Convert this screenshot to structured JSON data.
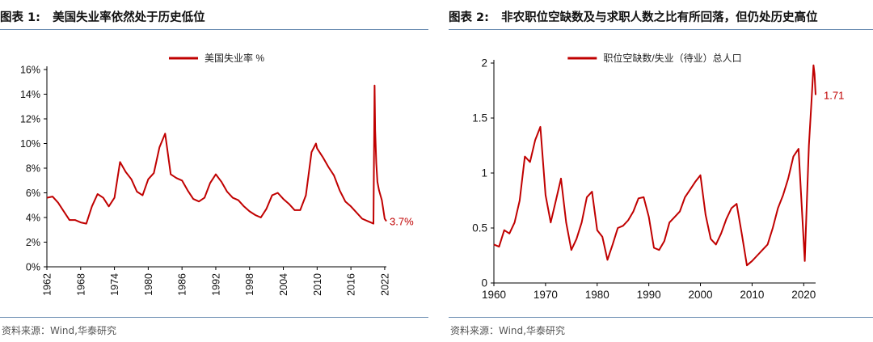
{
  "figures": [
    {
      "label": "图表 1:",
      "title": "美国失业率依然处于历史低位",
      "source": "资料来源：Wind,华泰研究"
    },
    {
      "label": "图表 2:",
      "title": "非农职位空缺数及与求职人数之比有所回落，但仍处历史高位",
      "source": "资料来源：Wind,华泰研究"
    }
  ],
  "colors": {
    "line": "#c00000",
    "axis": "#000000",
    "rule": "#6d8fb3"
  },
  "chart_data": [
    {
      "type": "line",
      "title": "美国失业率依然处于历史低位",
      "legend": "美国失业率 %",
      "legend_position": "top-center",
      "xlim": [
        1962,
        2022.3
      ],
      "ylim": [
        0,
        16
      ],
      "y_ticks": [
        0,
        2,
        4,
        6,
        8,
        10,
        12,
        14,
        16
      ],
      "y_tick_labels": [
        "0%",
        "2%",
        "4%",
        "6%",
        "8%",
        "10%",
        "12%",
        "14%",
        "16%"
      ],
      "x_ticks": [
        1962,
        1968,
        1974,
        1980,
        1986,
        1992,
        1998,
        2004,
        2010,
        2016,
        2022
      ],
      "x_tick_labels": [
        "1962",
        "1968",
        "1974",
        "1980",
        "1986",
        "1992",
        "1998",
        "2004",
        "2010",
        "2016",
        "2022"
      ],
      "annotation": {
        "text": "3.7%",
        "x": 2022.3,
        "y": 3.7
      },
      "series": [
        {
          "name": "美国失业率",
          "x": [
            1962,
            1963,
            1964,
            1965,
            1966,
            1967,
            1968,
            1969,
            1970,
            1971,
            1972,
            1973,
            1974,
            1975,
            1976,
            1977,
            1978,
            1979,
            1980,
            1981,
            1982,
            1983,
            1984,
            1985,
            1986,
            1987,
            1988,
            1989,
            1990,
            1991,
            1992,
            1993,
            1994,
            1995,
            1996,
            1997,
            1998,
            1999,
            2000,
            2001,
            2002,
            2003,
            2004,
            2005,
            2006,
            2007,
            2008,
            2009,
            2009.8,
            2010,
            2011,
            2012,
            2013,
            2014,
            2015,
            2016,
            2017,
            2018,
            2019,
            2020.0,
            2020.2,
            2020.3,
            2020.5,
            2020.7,
            2021,
            2021.5,
            2022,
            2022.3
          ],
          "y": [
            5.6,
            5.7,
            5.2,
            4.5,
            3.8,
            3.8,
            3.6,
            3.5,
            4.9,
            5.9,
            5.6,
            4.9,
            5.6,
            8.5,
            7.7,
            7.1,
            6.1,
            5.8,
            7.1,
            7.6,
            9.7,
            10.8,
            7.5,
            7.2,
            7.0,
            6.2,
            5.5,
            5.3,
            5.6,
            6.8,
            7.5,
            6.9,
            6.1,
            5.6,
            5.4,
            4.9,
            4.5,
            4.2,
            4.0,
            4.7,
            5.8,
            6.0,
            5.5,
            5.1,
            4.6,
            4.6,
            5.8,
            9.3,
            10.0,
            9.6,
            8.9,
            8.1,
            7.4,
            6.2,
            5.3,
            4.9,
            4.4,
            3.9,
            3.7,
            3.5,
            14.7,
            11.1,
            8.4,
            6.9,
            6.2,
            5.4,
            3.9,
            3.7
          ]
        }
      ]
    },
    {
      "type": "line",
      "title": "非农职位空缺数及与求职人数之比有所回落，但仍处历史高位",
      "legend": "职位空缺数/失业（待业）总人口",
      "legend_position": "top-center",
      "xlim": [
        1960,
        2022.3
      ],
      "ylim": [
        0,
        2
      ],
      "y_ticks": [
        0,
        0.5,
        1,
        1.5,
        2
      ],
      "y_tick_labels": [
        "0",
        "0.5",
        "1",
        "1.5",
        "2"
      ],
      "x_ticks": [
        1960,
        1970,
        1980,
        1990,
        2000,
        2010,
        2020
      ],
      "x_tick_labels": [
        "1960",
        "1970",
        "1980",
        "1990",
        "2000",
        "2010",
        "2020"
      ],
      "annotation": {
        "text": "1.71",
        "x": 2022.3,
        "y": 1.71
      },
      "series": [
        {
          "name": "职位空缺数/失业（待业）总人口",
          "x": [
            1960,
            1961,
            1962,
            1963,
            1964,
            1965,
            1966,
            1967,
            1968,
            1969,
            1970,
            1971,
            1972,
            1973,
            1974,
            1975,
            1976,
            1977,
            1978,
            1979,
            1980,
            1981,
            1982,
            1983,
            1984,
            1985,
            1986,
            1987,
            1988,
            1989,
            1990,
            1991,
            1992,
            1993,
            1994,
            1995,
            1996,
            1997,
            1998,
            1999,
            2000,
            2001,
            2002,
            2003,
            2004,
            2005,
            2006,
            2007,
            2008,
            2009,
            2010,
            2011,
            2012,
            2013,
            2014,
            2015,
            2016,
            2017,
            2018,
            2019,
            2020.2,
            2020.5,
            2021,
            2021.5,
            2021.9,
            2022.1,
            2022.3
          ],
          "y": [
            0.35,
            0.33,
            0.48,
            0.45,
            0.55,
            0.75,
            1.15,
            1.1,
            1.3,
            1.42,
            0.8,
            0.55,
            0.75,
            0.95,
            0.55,
            0.3,
            0.4,
            0.55,
            0.78,
            0.83,
            0.48,
            0.42,
            0.21,
            0.35,
            0.5,
            0.52,
            0.57,
            0.65,
            0.77,
            0.78,
            0.6,
            0.32,
            0.3,
            0.38,
            0.55,
            0.6,
            0.65,
            0.78,
            0.85,
            0.92,
            0.98,
            0.62,
            0.4,
            0.35,
            0.45,
            0.58,
            0.68,
            0.72,
            0.45,
            0.16,
            0.2,
            0.25,
            0.3,
            0.35,
            0.5,
            0.68,
            0.8,
            0.95,
            1.15,
            1.22,
            0.2,
            0.6,
            1.25,
            1.65,
            1.98,
            1.9,
            1.71
          ]
        }
      ]
    }
  ]
}
